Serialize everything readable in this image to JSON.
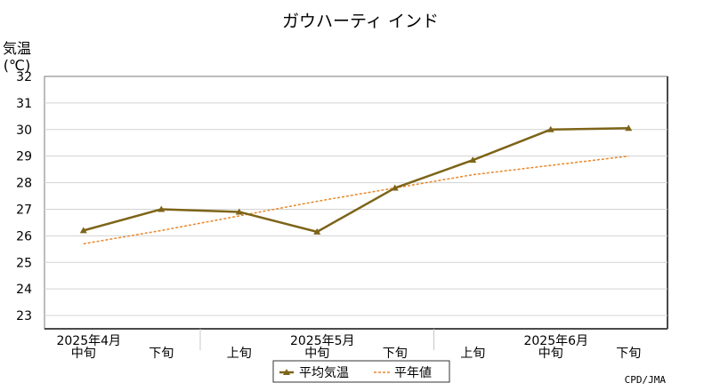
{
  "chart_data": {
    "type": "line",
    "title": "ガウハーティ インド",
    "ylabel": [
      "気温",
      "(℃)"
    ],
    "ylim": [
      22.5,
      32
    ],
    "yticks": [
      23,
      24,
      25,
      26,
      27,
      28,
      29,
      30,
      31,
      32
    ],
    "categories": [
      "中旬",
      "下旬",
      "上旬",
      "中旬",
      "下旬",
      "上旬",
      "中旬",
      "下旬"
    ],
    "month_labels": [
      {
        "label": "2025年4月",
        "index": 0
      },
      {
        "label": "2025年5月",
        "index": 3
      },
      {
        "label": "2025年6月",
        "index": 6
      }
    ],
    "month_boundaries_after": [
      1,
      4
    ],
    "series": [
      {
        "name": "平均気温",
        "values": [
          26.2,
          27.0,
          26.9,
          26.15,
          27.8,
          28.85,
          30.0,
          30.05
        ],
        "color": "#7d6418",
        "style": "solid",
        "marker": "triangle"
      },
      {
        "name": "平年値",
        "values": [
          25.7,
          26.2,
          26.75,
          27.3,
          27.8,
          28.3,
          28.65,
          29.0
        ],
        "color": "#e8872a",
        "style": "dotted"
      }
    ],
    "grid": true,
    "legend_position": "bottom-center",
    "source": "CPD/JMA"
  }
}
